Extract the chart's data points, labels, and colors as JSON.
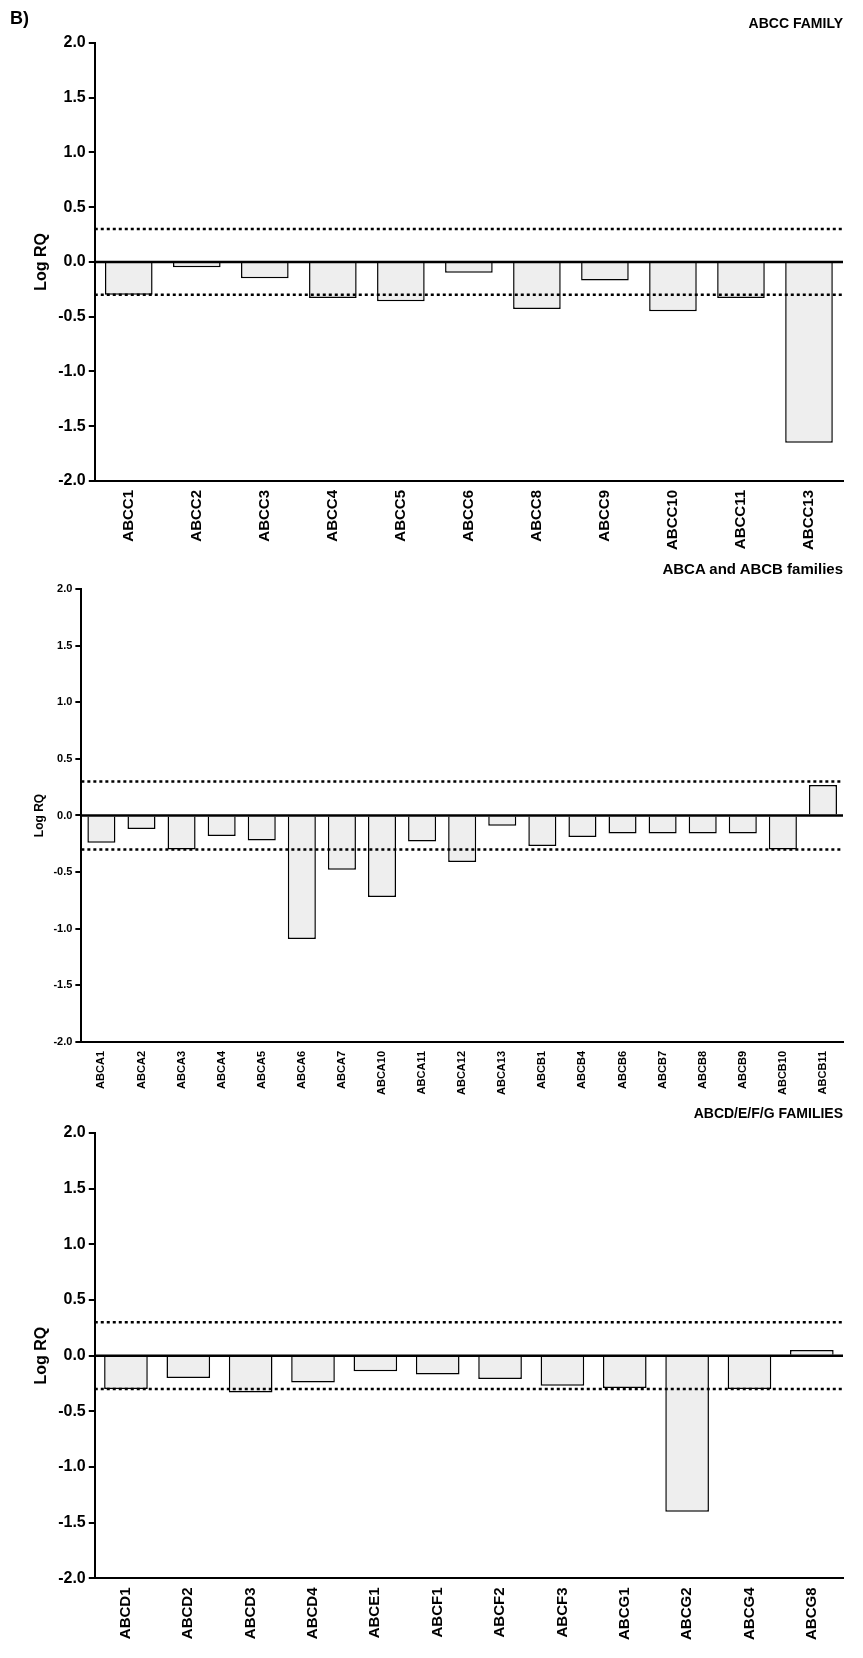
{
  "chart_data": [
    {
      "type": "bar",
      "title": "ABCC FAMILY",
      "ylabel": "Log RQ",
      "annotations": [
        "B)"
      ],
      "categories": [
        "ABCC1",
        "ABCC2",
        "ABCC3",
        "ABCC4",
        "ABCC5",
        "ABCC6",
        "ABCC8",
        "ABCC9",
        "ABCC10",
        "ABCC11",
        "ABCC13"
      ],
      "values": [
        -0.3,
        -0.05,
        -0.15,
        -0.33,
        -0.36,
        -0.1,
        -0.43,
        -0.17,
        -0.45,
        -0.33,
        -1.65
      ],
      "color": "#eeeeee",
      "ylim": [
        -2,
        2
      ],
      "yticks": [
        {
          "value": -2,
          "label": "-2.0"
        },
        {
          "value": -1.5,
          "label": "-1.5"
        },
        {
          "value": -1,
          "label": "-1.0"
        },
        {
          "value": -0.5,
          "label": "-0.5"
        },
        {
          "value": 0,
          "label": "0.0"
        },
        {
          "value": 0.5,
          "label": "0.5"
        },
        {
          "value": 1,
          "label": "1.0"
        },
        {
          "value": 1.5,
          "label": "1.5"
        },
        {
          "value": 2,
          "label": "2.0"
        }
      ],
      "ref_lines": [
        {
          "axis": "y",
          "value": 0,
          "line_style": "solid",
          "color": "#000000"
        },
        {
          "axis": "y",
          "value": 0.3,
          "line_style": "dotted",
          "color": "#000000"
        },
        {
          "axis": "y",
          "value": -0.3,
          "line_style": "dotted",
          "color": "#000000"
        }
      ]
    },
    {
      "type": "bar",
      "title": "ABCA and ABCB families",
      "ylabel": "Log RQ",
      "categories": [
        "ABCA1",
        "ABCA2",
        "ABCA3",
        "ABCA4",
        "ABCA5",
        "ABCA6",
        "ABCA7",
        "ABCA10",
        "ABCA11",
        "ABCA12",
        "ABCA13",
        "ABCB1",
        "ABCB4",
        "ABCB6",
        "ABCB7",
        "ABCB8",
        "ABCB9",
        "ABCB10",
        "ABCB11"
      ],
      "values": [
        -0.24,
        -0.12,
        -0.3,
        -0.18,
        -0.22,
        -1.09,
        -0.48,
        -0.72,
        -0.23,
        -0.41,
        -0.09,
        -0.27,
        -0.19,
        -0.16,
        -0.16,
        -0.16,
        -0.16,
        -0.3,
        0.27
      ],
      "color": "#eeeeee",
      "ylim": [
        -2,
        2
      ],
      "yticks": [
        {
          "value": -2,
          "label": "-2.0"
        },
        {
          "value": -1.5,
          "label": "-1.5"
        },
        {
          "value": -1,
          "label": "-1.0"
        },
        {
          "value": -0.5,
          "label": "-0.5"
        },
        {
          "value": 0,
          "label": "0.0"
        },
        {
          "value": 0.5,
          "label": "0.5"
        },
        {
          "value": 1,
          "label": "1.0"
        },
        {
          "value": 1.5,
          "label": "1.5"
        },
        {
          "value": 2,
          "label": "2.0"
        }
      ],
      "ref_lines": [
        {
          "axis": "y",
          "value": 0,
          "line_style": "solid",
          "color": "#000000"
        },
        {
          "axis": "y",
          "value": 0.3,
          "line_style": "dotted",
          "color": "#000000"
        },
        {
          "axis": "y",
          "value": -0.3,
          "line_style": "dotted",
          "color": "#000000"
        }
      ]
    },
    {
      "type": "bar",
      "title": "ABCD/E/F/G FAMILIES",
      "ylabel": "Log RQ",
      "categories": [
        "ABCD1",
        "ABCD2",
        "ABCD3",
        "ABCD4",
        "ABCE1",
        "ABCF1",
        "ABCF2",
        "ABCF3",
        "ABCG1",
        "ABCG2",
        "ABCG4",
        "ABCG8"
      ],
      "values": [
        -0.3,
        -0.2,
        -0.33,
        -0.24,
        -0.14,
        -0.17,
        -0.21,
        -0.27,
        -0.29,
        -1.4,
        -0.3,
        0.05
      ],
      "color": "#eeeeee",
      "ylim": [
        -2,
        2
      ],
      "yticks": [
        {
          "value": -2,
          "label": "-2.0"
        },
        {
          "value": -1.5,
          "label": "-1.5"
        },
        {
          "value": -1,
          "label": "-1.0"
        },
        {
          "value": -0.5,
          "label": "-0.5"
        },
        {
          "value": 0,
          "label": "0.0"
        },
        {
          "value": 0.5,
          "label": "0.5"
        },
        {
          "value": 1,
          "label": "1.0"
        },
        {
          "value": 1.5,
          "label": "1.5"
        },
        {
          "value": 2,
          "label": "2.0"
        }
      ],
      "ref_lines": [
        {
          "axis": "y",
          "value": 0,
          "line_style": "solid",
          "color": "#000000"
        },
        {
          "axis": "y",
          "value": 0.3,
          "line_style": "dotted",
          "color": "#000000"
        },
        {
          "axis": "y",
          "value": -0.3,
          "line_style": "dotted",
          "color": "#000000"
        }
      ]
    }
  ]
}
